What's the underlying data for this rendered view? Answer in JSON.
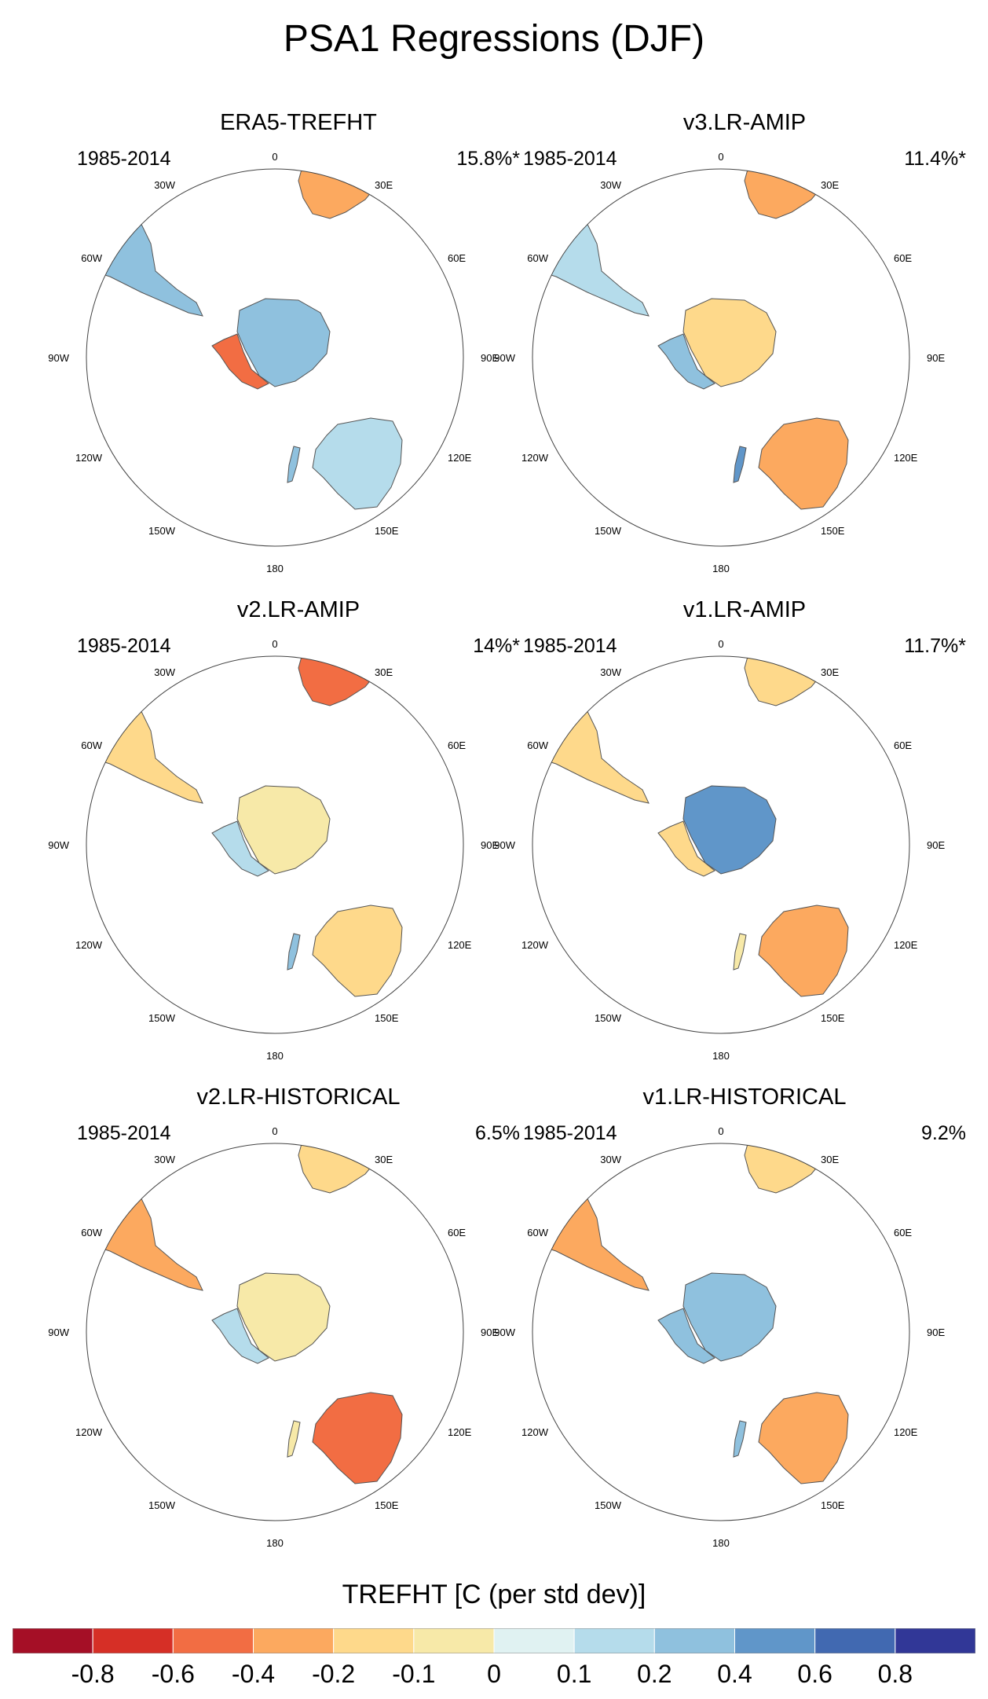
{
  "title": "PSA1 Regressions (DJF)",
  "chart_data": {
    "type": "polar-map-panels",
    "projection": "south polar stereographic",
    "longitude_labels": [
      "0",
      "30E",
      "60E",
      "90E",
      "120E",
      "150E",
      "180",
      "150W",
      "120W",
      "90W",
      "60W",
      "30W"
    ],
    "panels": [
      {
        "title": "ERA5-TREFHT",
        "period": "1985-2014",
        "explained_variance": "15.8%*",
        "regions": {
          "southern_africa": -0.4,
          "south_america": 0.2,
          "antarctica_east": 0.2,
          "antarctic_peninsula": -0.6,
          "australia": 0.1,
          "new_zealand": 0.2
        }
      },
      {
        "title": "v3.LR-AMIP",
        "period": "1985-2014",
        "explained_variance": "11.4%*",
        "regions": {
          "southern_africa": -0.4,
          "south_america": 0.1,
          "antarctica_east": -0.2,
          "antarctic_peninsula": 0.2,
          "australia": -0.4,
          "new_zealand": 0.4
        }
      },
      {
        "title": "v2.LR-AMIP",
        "period": "1985-2014",
        "explained_variance": "14%*",
        "regions": {
          "southern_africa": -0.6,
          "south_america": -0.2,
          "antarctica_east": -0.1,
          "antarctic_peninsula": 0.1,
          "australia": -0.2,
          "new_zealand": 0.2
        }
      },
      {
        "title": "v1.LR-AMIP",
        "period": "1985-2014",
        "explained_variance": "11.7%*",
        "regions": {
          "southern_africa": -0.2,
          "south_america": -0.2,
          "antarctica_east": 0.4,
          "antarctic_peninsula": -0.2,
          "australia": -0.4,
          "new_zealand": -0.1
        }
      },
      {
        "title": "v2.LR-HISTORICAL",
        "period": "1985-2014",
        "explained_variance": "6.5%",
        "regions": {
          "southern_africa": -0.2,
          "south_america": -0.4,
          "antarctica_east": -0.1,
          "antarctic_peninsula": 0.1,
          "australia": -0.6,
          "new_zealand": -0.1
        }
      },
      {
        "title": "v1.LR-HISTORICAL",
        "period": "1985-2014",
        "explained_variance": "9.2%",
        "regions": {
          "southern_africa": -0.2,
          "south_america": -0.4,
          "antarctica_east": 0.2,
          "antarctic_peninsula": 0.2,
          "australia": -0.4,
          "new_zealand": 0.2
        }
      }
    ],
    "colorbar": {
      "title": "TREFHT [C (per std dev)]",
      "tick_labels": [
        "-0.8",
        "-0.6",
        "-0.4",
        "-0.2",
        "-0.1",
        "0",
        "0.1",
        "0.2",
        "0.4",
        "0.6",
        "0.8"
      ],
      "colors": [
        "#a50f26",
        "#d62f26",
        "#f26d43",
        "#fca95f",
        "#fed98b",
        "#f7e9a8",
        "#e0f2f2",
        "#b5dceb",
        "#8fc1de",
        "#6096c9",
        "#4169b1",
        "#313797"
      ]
    }
  }
}
